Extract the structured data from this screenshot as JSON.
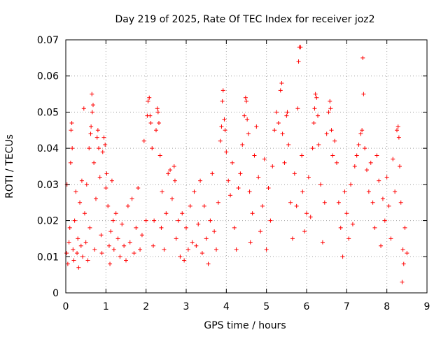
{
  "chart_data": {
    "type": "scatter",
    "title": "Day 219 of 2025, Rate Of TEC Index for receiver joz2",
    "xlabel": "GPS time / hours",
    "ylabel": "ROTI / TECUs",
    "xlim": [
      0,
      9
    ],
    "ylim": [
      0,
      0.07
    ],
    "x_ticks": [
      "0",
      "1",
      "2",
      "3",
      "4",
      "5",
      "6",
      "7",
      "8",
      "9"
    ],
    "y_ticks": [
      "0",
      "0.01",
      "0.02",
      "0.03",
      "0.04",
      "0.05",
      "0.06",
      "0.07"
    ],
    "grid": true,
    "marker": "+",
    "color": "#ff0000",
    "series": [
      {
        "name": "ROTI",
        "points": [
          [
            0.02,
            0.011
          ],
          [
            0.03,
            0.03
          ],
          [
            0.05,
            0.008
          ],
          [
            0.08,
            0.014
          ],
          [
            0.1,
            0.018
          ],
          [
            0.12,
            0.036
          ],
          [
            0.13,
            0.045
          ],
          [
            0.15,
            0.047
          ],
          [
            0.16,
            0.04
          ],
          [
            0.18,
            0.012
          ],
          [
            0.2,
            0.009
          ],
          [
            0.22,
            0.02
          ],
          [
            0.25,
            0.028
          ],
          [
            0.28,
            0.011
          ],
          [
            0.3,
            0.015
          ],
          [
            0.32,
            0.007
          ],
          [
            0.35,
            0.025
          ],
          [
            0.38,
            0.013
          ],
          [
            0.4,
            0.031
          ],
          [
            0.42,
            0.01
          ],
          [
            0.45,
            0.051
          ],
          [
            0.47,
            0.022
          ],
          [
            0.5,
            0.014
          ],
          [
            0.52,
            0.03
          ],
          [
            0.55,
            0.009
          ],
          [
            0.58,
            0.04
          ],
          [
            0.6,
            0.018
          ],
          [
            0.62,
            0.044
          ],
          [
            0.63,
            0.046
          ],
          [
            0.65,
            0.055
          ],
          [
            0.66,
            0.05
          ],
          [
            0.68,
            0.052
          ],
          [
            0.7,
            0.036
          ],
          [
            0.72,
            0.012
          ],
          [
            0.75,
            0.026
          ],
          [
            0.78,
            0.043
          ],
          [
            0.8,
            0.045
          ],
          [
            0.82,
            0.04
          ],
          [
            0.85,
            0.032
          ],
          [
            0.88,
            0.016
          ],
          [
            0.9,
            0.011
          ],
          [
            0.92,
            0.039
          ],
          [
            0.95,
            0.043
          ],
          [
            0.98,
            0.041
          ],
          [
            1.0,
            0.029
          ],
          [
            1.02,
            0.033
          ],
          [
            1.05,
            0.024
          ],
          [
            1.08,
            0.013
          ],
          [
            1.1,
            0.008
          ],
          [
            1.12,
            0.017
          ],
          [
            1.15,
            0.031
          ],
          [
            1.18,
            0.02
          ],
          [
            1.2,
            0.012
          ],
          [
            1.25,
            0.022
          ],
          [
            1.3,
            0.015
          ],
          [
            1.35,
            0.01
          ],
          [
            1.4,
            0.019
          ],
          [
            1.45,
            0.013
          ],
          [
            1.5,
            0.009
          ],
          [
            1.55,
            0.024
          ],
          [
            1.6,
            0.014
          ],
          [
            1.65,
            0.026
          ],
          [
            1.7,
            0.011
          ],
          [
            1.75,
            0.018
          ],
          [
            1.8,
            0.029
          ],
          [
            1.85,
            0.012
          ],
          [
            1.9,
            0.016
          ],
          [
            1.95,
            0.042
          ],
          [
            2.0,
            0.02
          ],
          [
            2.03,
            0.049
          ],
          [
            2.05,
            0.053
          ],
          [
            2.08,
            0.054
          ],
          [
            2.1,
            0.049
          ],
          [
            2.12,
            0.047
          ],
          [
            2.15,
            0.04
          ],
          [
            2.18,
            0.013
          ],
          [
            2.2,
            0.02
          ],
          [
            2.25,
            0.045
          ],
          [
            2.28,
            0.051
          ],
          [
            2.3,
            0.05
          ],
          [
            2.32,
            0.047
          ],
          [
            2.35,
            0.038
          ],
          [
            2.38,
            0.018
          ],
          [
            2.4,
            0.028
          ],
          [
            2.45,
            0.012
          ],
          [
            2.5,
            0.022
          ],
          [
            2.55,
            0.033
          ],
          [
            2.6,
            0.034
          ],
          [
            2.65,
            0.026
          ],
          [
            2.7,
            0.035
          ],
          [
            2.72,
            0.031
          ],
          [
            2.75,
            0.015
          ],
          [
            2.8,
            0.02
          ],
          [
            2.85,
            0.01
          ],
          [
            2.9,
            0.022
          ],
          [
            2.95,
            0.009
          ],
          [
            3.0,
            0.018
          ],
          [
            3.05,
            0.012
          ],
          [
            3.1,
            0.024
          ],
          [
            3.15,
            0.014
          ],
          [
            3.2,
            0.028
          ],
          [
            3.25,
            0.013
          ],
          [
            3.3,
            0.019
          ],
          [
            3.35,
            0.031
          ],
          [
            3.4,
            0.011
          ],
          [
            3.45,
            0.024
          ],
          [
            3.5,
            0.015
          ],
          [
            3.55,
            0.008
          ],
          [
            3.6,
            0.02
          ],
          [
            3.65,
            0.033
          ],
          [
            3.7,
            0.017
          ],
          [
            3.75,
            0.012
          ],
          [
            3.8,
            0.025
          ],
          [
            3.85,
            0.042
          ],
          [
            3.88,
            0.046
          ],
          [
            3.9,
            0.053
          ],
          [
            3.92,
            0.056
          ],
          [
            3.95,
            0.048
          ],
          [
            3.97,
            0.045
          ],
          [
            4.0,
            0.039
          ],
          [
            4.05,
            0.031
          ],
          [
            4.1,
            0.027
          ],
          [
            4.15,
            0.036
          ],
          [
            4.2,
            0.018
          ],
          [
            4.25,
            0.012
          ],
          [
            4.3,
            0.029
          ],
          [
            4.35,
            0.033
          ],
          [
            4.4,
            0.041
          ],
          [
            4.45,
            0.049
          ],
          [
            4.48,
            0.054
          ],
          [
            4.5,
            0.053
          ],
          [
            4.52,
            0.048
          ],
          [
            4.55,
            0.044
          ],
          [
            4.58,
            0.028
          ],
          [
            4.6,
            0.014
          ],
          [
            4.65,
            0.022
          ],
          [
            4.7,
            0.038
          ],
          [
            4.75,
            0.046
          ],
          [
            4.8,
            0.032
          ],
          [
            4.85,
            0.017
          ],
          [
            4.9,
            0.024
          ],
          [
            4.95,
            0.037
          ],
          [
            5.0,
            0.012
          ],
          [
            5.05,
            0.029
          ],
          [
            5.1,
            0.02
          ],
          [
            5.15,
            0.035
          ],
          [
            5.2,
            0.045
          ],
          [
            5.25,
            0.05
          ],
          [
            5.3,
            0.047
          ],
          [
            5.35,
            0.056
          ],
          [
            5.38,
            0.058
          ],
          [
            5.4,
            0.044
          ],
          [
            5.45,
            0.036
          ],
          [
            5.5,
            0.049
          ],
          [
            5.52,
            0.05
          ],
          [
            5.55,
            0.041
          ],
          [
            5.6,
            0.025
          ],
          [
            5.65,
            0.015
          ],
          [
            5.7,
            0.033
          ],
          [
            5.75,
            0.024
          ],
          [
            5.78,
            0.051
          ],
          [
            5.8,
            0.064
          ],
          [
            5.82,
            0.068
          ],
          [
            5.85,
            0.068
          ],
          [
            5.88,
            0.038
          ],
          [
            5.9,
            0.028
          ],
          [
            5.95,
            0.017
          ],
          [
            6.0,
            0.022
          ],
          [
            6.05,
            0.032
          ],
          [
            6.1,
            0.021
          ],
          [
            6.15,
            0.04
          ],
          [
            6.18,
            0.047
          ],
          [
            6.2,
            0.051
          ],
          [
            6.22,
            0.055
          ],
          [
            6.25,
            0.054
          ],
          [
            6.28,
            0.049
          ],
          [
            6.3,
            0.041
          ],
          [
            6.35,
            0.03
          ],
          [
            6.4,
            0.014
          ],
          [
            6.45,
            0.025
          ],
          [
            6.5,
            0.044
          ],
          [
            6.55,
            0.05
          ],
          [
            6.58,
            0.053
          ],
          [
            6.6,
            0.051
          ],
          [
            6.62,
            0.045
          ],
          [
            6.65,
            0.038
          ],
          [
            6.7,
            0.042
          ],
          [
            6.75,
            0.036
          ],
          [
            6.8,
            0.025
          ],
          [
            6.85,
            0.018
          ],
          [
            6.9,
            0.01
          ],
          [
            6.95,
            0.028
          ],
          [
            7.0,
            0.022
          ],
          [
            7.05,
            0.015
          ],
          [
            7.1,
            0.03
          ],
          [
            7.15,
            0.019
          ],
          [
            7.2,
            0.035
          ],
          [
            7.25,
            0.038
          ],
          [
            7.3,
            0.041
          ],
          [
            7.35,
            0.044
          ],
          [
            7.38,
            0.045
          ],
          [
            7.4,
            0.065
          ],
          [
            7.42,
            0.055
          ],
          [
            7.45,
            0.04
          ],
          [
            7.5,
            0.034
          ],
          [
            7.55,
            0.028
          ],
          [
            7.6,
            0.036
          ],
          [
            7.65,
            0.025
          ],
          [
            7.7,
            0.018
          ],
          [
            7.75,
            0.038
          ],
          [
            7.8,
            0.031
          ],
          [
            7.85,
            0.013
          ],
          [
            7.9,
            0.026
          ],
          [
            7.95,
            0.02
          ],
          [
            8.0,
            0.032
          ],
          [
            8.05,
            0.024
          ],
          [
            8.1,
            0.015
          ],
          [
            8.15,
            0.037
          ],
          [
            8.2,
            0.028
          ],
          [
            8.25,
            0.045
          ],
          [
            8.28,
            0.046
          ],
          [
            8.3,
            0.043
          ],
          [
            8.32,
            0.035
          ],
          [
            8.35,
            0.025
          ],
          [
            8.38,
            0.003
          ],
          [
            8.4,
            0.012
          ],
          [
            8.42,
            0.008
          ],
          [
            8.45,
            0.018
          ],
          [
            8.5,
            0.011
          ]
        ]
      }
    ]
  }
}
